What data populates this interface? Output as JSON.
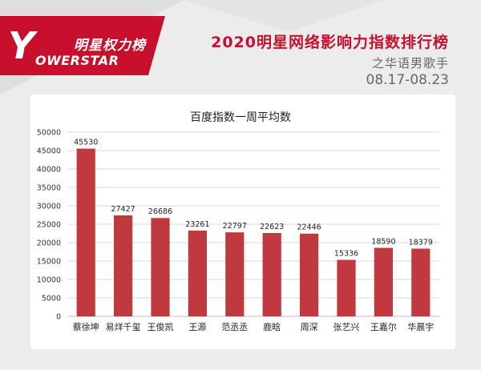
{
  "brand": {
    "logo_letter": "Y",
    "logo_cn": "明星权力榜",
    "logo_en": "OWERSTAR"
  },
  "header": {
    "title": "2020明星网络影响力指数排行榜",
    "subtitle": "之华语男歌手",
    "date_range": "08.17-08.23"
  },
  "colors": {
    "brand_red": "#c8102e",
    "bar_fill": "#c0393f",
    "grid": "#d9d9d9"
  },
  "chart_data": {
    "type": "bar",
    "title": "百度指数一周平均数",
    "categories": [
      "蔡徐坤",
      "易烊千玺",
      "王俊凯",
      "王源",
      "范丞丞",
      "鹿晗",
      "周深",
      "张艺兴",
      "王嘉尔",
      "华晨宇"
    ],
    "values": [
      45530,
      27427,
      26686,
      23261,
      22797,
      22623,
      22446,
      15336,
      18590,
      18379
    ],
    "ylim": [
      0,
      50000
    ],
    "yticks": [
      0,
      5000,
      10000,
      15000,
      20000,
      25000,
      30000,
      35000,
      40000,
      45000,
      50000
    ],
    "grid": true,
    "data_labels": true,
    "xlabel": "",
    "ylabel": ""
  }
}
